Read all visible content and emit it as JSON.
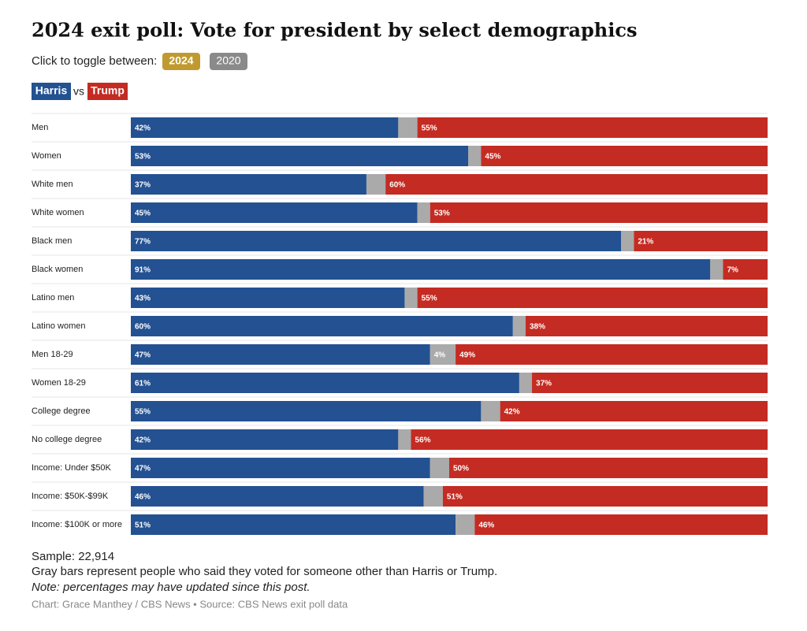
{
  "chart_data": {
    "type": "stacked-bar",
    "orientation": "horizontal",
    "title": "2024 exit poll: Vote for president by select demographics",
    "toggle_label": "Click to toggle between:",
    "toggle_options": [
      "2024",
      "2020"
    ],
    "legend_joiner": "vs",
    "categories": [
      "Men",
      "Women",
      "White men",
      "White women",
      "Black men",
      "Black women",
      "Latino men",
      "Latino women",
      "Men 18-29",
      "Women 18-29",
      "College degree",
      "No college degree",
      "Income: Under $50K",
      "Income: $50K-$99K",
      "Income: $100K or more"
    ],
    "xlim": [
      0,
      100
    ],
    "series": [
      {
        "name": "Harris",
        "color": "#235192",
        "values": [
          42,
          53,
          37,
          45,
          77,
          91,
          43,
          60,
          47,
          61,
          55,
          42,
          47,
          46,
          51
        ],
        "value_labels": [
          "42%",
          "53%",
          "37%",
          "45%",
          "77%",
          "91%",
          "43%",
          "60%",
          "47%",
          "61%",
          "55%",
          "42%",
          "47%",
          "46%",
          "51%"
        ]
      },
      {
        "color": "#aaaaaa",
        "values": [
          3,
          2,
          3,
          2,
          2,
          2,
          2,
          2,
          4,
          2,
          3,
          2,
          3,
          3,
          3
        ],
        "value_labels": [
          null,
          null,
          null,
          null,
          null,
          null,
          null,
          null,
          "4%",
          null,
          null,
          null,
          null,
          null,
          null
        ]
      },
      {
        "name": "Trump",
        "color": "#c42b22",
        "values": [
          55,
          45,
          60,
          53,
          21,
          7,
          55,
          38,
          49,
          37,
          42,
          56,
          50,
          51,
          46
        ],
        "value_labels": [
          "55%",
          "45%",
          "60%",
          "53%",
          "21%",
          "7%",
          "55%",
          "38%",
          "49%",
          "37%",
          "42%",
          "56%",
          "50%",
          "51%",
          "46%"
        ]
      }
    ],
    "notes": [
      "Sample: 22,914",
      "Gray bars represent people who said they voted for someone other than Harris or Trump.",
      "Note: percentages may have updated since this post."
    ],
    "source": "Chart: Grace Manthey / CBS News • Source: CBS News exit poll data"
  }
}
